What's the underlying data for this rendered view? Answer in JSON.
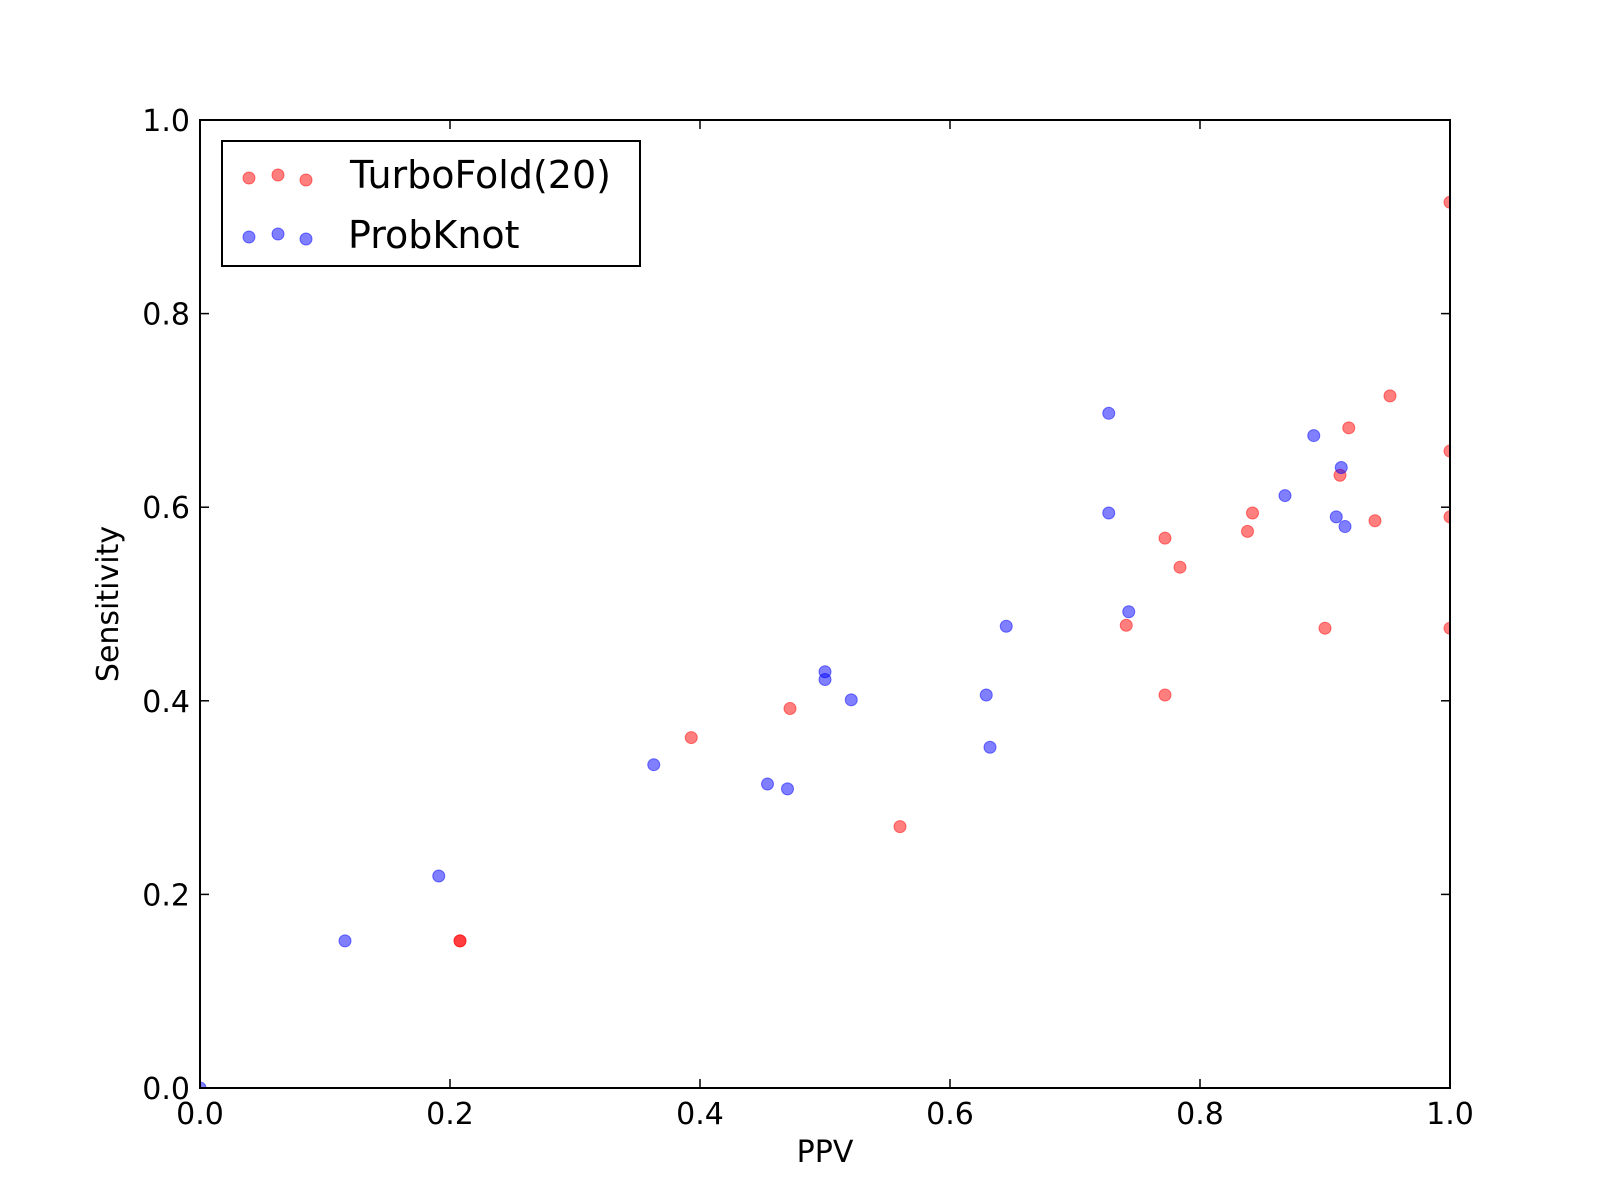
{
  "chart_data": {
    "type": "scatter",
    "title": "",
    "xlabel": "PPV",
    "ylabel": "Sensitivity",
    "xlim": [
      0.0,
      1.0
    ],
    "ylim": [
      0.0,
      1.0
    ],
    "xticks": [
      "0.0",
      "0.2",
      "0.4",
      "0.6",
      "0.8",
      "1.0"
    ],
    "yticks": [
      "0.0",
      "0.2",
      "0.4",
      "0.6",
      "0.8",
      "1.0"
    ],
    "grid": false,
    "legend_position": "top-left",
    "series": [
      {
        "name": "TurboFold(20)",
        "color": "#ff0000",
        "points": [
          {
            "x": 0.208,
            "y": 0.152
          },
          {
            "x": 0.208,
            "y": 0.152
          },
          {
            "x": 0.393,
            "y": 0.362
          },
          {
            "x": 0.472,
            "y": 0.392
          },
          {
            "x": 0.56,
            "y": 0.27
          },
          {
            "x": 0.741,
            "y": 0.478
          },
          {
            "x": 0.772,
            "y": 0.568
          },
          {
            "x": 0.772,
            "y": 0.406
          },
          {
            "x": 0.784,
            "y": 0.538
          },
          {
            "x": 0.838,
            "y": 0.575
          },
          {
            "x": 0.842,
            "y": 0.594
          },
          {
            "x": 0.9,
            "y": 0.475
          },
          {
            "x": 0.912,
            "y": 0.633
          },
          {
            "x": 0.919,
            "y": 0.682
          },
          {
            "x": 0.94,
            "y": 0.586
          },
          {
            "x": 0.952,
            "y": 0.715
          },
          {
            "x": 1.0,
            "y": 0.915
          },
          {
            "x": 1.0,
            "y": 0.658
          },
          {
            "x": 1.0,
            "y": 0.59
          },
          {
            "x": 1.0,
            "y": 0.475
          }
        ]
      },
      {
        "name": "ProbKnot",
        "color": "#0000ff",
        "points": [
          {
            "x": 0.0,
            "y": 0.0
          },
          {
            "x": 0.116,
            "y": 0.152
          },
          {
            "x": 0.191,
            "y": 0.219
          },
          {
            "x": 0.363,
            "y": 0.334
          },
          {
            "x": 0.454,
            "y": 0.314
          },
          {
            "x": 0.47,
            "y": 0.309
          },
          {
            "x": 0.5,
            "y": 0.43
          },
          {
            "x": 0.5,
            "y": 0.422
          },
          {
            "x": 0.521,
            "y": 0.401
          },
          {
            "x": 0.629,
            "y": 0.406
          },
          {
            "x": 0.632,
            "y": 0.352
          },
          {
            "x": 0.645,
            "y": 0.477
          },
          {
            "x": 0.727,
            "y": 0.697
          },
          {
            "x": 0.727,
            "y": 0.594
          },
          {
            "x": 0.743,
            "y": 0.492
          },
          {
            "x": 0.868,
            "y": 0.612
          },
          {
            "x": 0.891,
            "y": 0.674
          },
          {
            "x": 0.909,
            "y": 0.59
          },
          {
            "x": 0.913,
            "y": 0.641
          },
          {
            "x": 0.916,
            "y": 0.58
          }
        ]
      }
    ]
  }
}
